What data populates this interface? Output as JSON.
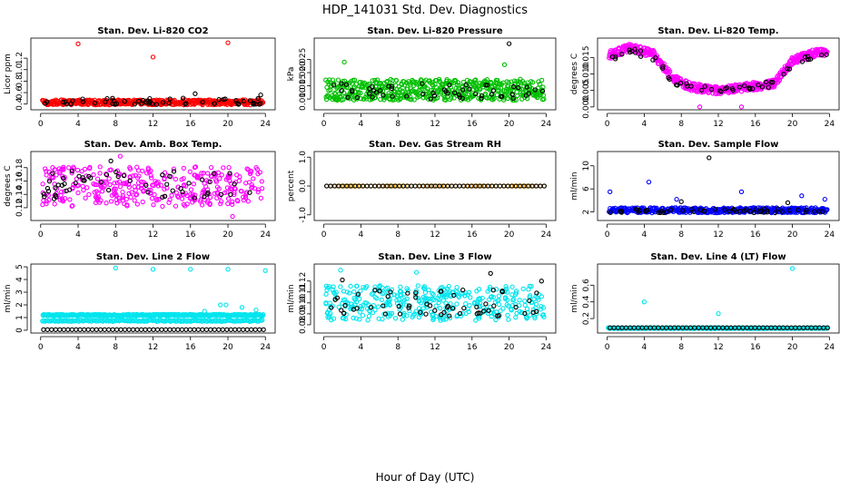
{
  "figure": {
    "title": "HDP_141031  Std. Dev. Diagnostics",
    "xlabel": "Hour of Day (UTC)"
  },
  "chart_data": [
    {
      "type": "scatter",
      "title": "Stan. Dev. Li-820 CO2",
      "ylabel": "Licor ppm",
      "xlim": [
        0,
        24
      ],
      "ylim": [
        0.35,
        1.5
      ],
      "xticks": [
        0,
        4,
        8,
        12,
        16,
        20,
        24
      ],
      "yticks": [
        0.4,
        0.6,
        0.8,
        1.0,
        1.2
      ],
      "ytick_labels": [
        "0.4",
        "0.6",
        "0.8",
        "1.0",
        "1.2"
      ],
      "series": [
        {
          "name": "dense",
          "color": "#ff0000",
          "pattern": "band",
          "base": 0.43,
          "amp": 0.045,
          "density": 18,
          "outliers": [
            [
              4.0,
              1.45
            ],
            [
              12.0,
              1.22
            ],
            [
              20.0,
              1.47
            ]
          ]
        },
        {
          "name": "sparse",
          "color": "#000000",
          "pattern": "scatter",
          "base": 0.45,
          "amp": 0.06,
          "n": 55,
          "outliers": [
            [
              16.5,
              0.58
            ],
            [
              23.5,
              0.56
            ]
          ]
        }
      ]
    },
    {
      "type": "scatter",
      "title": "Stan. Dev. Li-820 Pressure",
      "ylabel": "kPa",
      "xlim": [
        0,
        24
      ],
      "ylim": [
        0.007,
        0.032
      ],
      "xticks": [
        0,
        4,
        8,
        12,
        16,
        20,
        24
      ],
      "yticks": [
        0.01,
        0.015,
        0.02,
        0.025
      ],
      "ytick_labels": [
        "0.010",
        "0.015",
        "0.020",
        "0.025"
      ],
      "series": [
        {
          "name": "dense",
          "color": "#00c000",
          "pattern": "band",
          "base": 0.0135,
          "amp": 0.004,
          "density": 22,
          "outliers": [
            [
              2.2,
              0.024
            ],
            [
              19.5,
              0.023
            ]
          ]
        },
        {
          "name": "sparse",
          "color": "#000000",
          "pattern": "scatter",
          "base": 0.013,
          "amp": 0.003,
          "n": 55,
          "outliers": [
            [
              20.0,
              0.031
            ]
          ]
        }
      ]
    },
    {
      "type": "scatter",
      "title": "Stan. Dev. Li-820 Temp.",
      "ylabel": "degrees C",
      "xlim": [
        0,
        24
      ],
      "ylim": [
        0.0,
        0.02
      ],
      "xticks": [
        0,
        4,
        8,
        12,
        16,
        20,
        24
      ],
      "yticks": [
        0.0,
        0.005,
        0.01,
        0.015
      ],
      "ytick_labels": [
        "0.000",
        "0.005",
        "0.010",
        "0.015"
      ],
      "series": [
        {
          "name": "dense",
          "color": "#ff00ff",
          "pattern": "curve",
          "knots": [
            [
              0.5,
              0.016
            ],
            [
              2.5,
              0.018
            ],
            [
              5.0,
              0.016
            ],
            [
              7.0,
              0.009
            ],
            [
              9.0,
              0.006
            ],
            [
              12.0,
              0.005
            ],
            [
              15.0,
              0.006
            ],
            [
              18.0,
              0.007
            ],
            [
              20.0,
              0.014
            ],
            [
              22.0,
              0.016
            ],
            [
              24.0,
              0.017
            ]
          ],
          "amp": 0.0012,
          "density": 22,
          "outliers": [
            [
              10.0,
              0.0
            ],
            [
              14.5,
              0.0
            ]
          ]
        },
        {
          "name": "sparse",
          "color": "#000000",
          "pattern": "curve",
          "knots": [
            [
              0.5,
              0.015
            ],
            [
              2.5,
              0.017
            ],
            [
              5.0,
              0.015
            ],
            [
              7.0,
              0.008
            ],
            [
              9.0,
              0.006
            ],
            [
              12.0,
              0.005
            ],
            [
              15.0,
              0.006
            ],
            [
              18.0,
              0.007
            ],
            [
              20.0,
              0.013
            ],
            [
              22.0,
              0.015
            ],
            [
              24.0,
              0.016
            ]
          ],
          "amp": 0.0009,
          "n": 55,
          "outliers": []
        }
      ]
    },
    {
      "type": "scatter",
      "title": "Stan. Dev. Amb. Box Temp.",
      "ylabel": "degrees C",
      "xlim": [
        0,
        24
      ],
      "ylim": [
        0.105,
        0.2
      ],
      "xticks": [
        0,
        4,
        8,
        12,
        16,
        20,
        24
      ],
      "yticks": [
        0.12,
        0.14,
        0.16,
        0.18
      ],
      "ytick_labels": [
        "0.12",
        "0.14",
        "0.16",
        "0.18"
      ],
      "series": [
        {
          "name": "dense",
          "color": "#ff00ff",
          "pattern": "scatter",
          "base": 0.152,
          "amp": 0.03,
          "n": 360,
          "outliers": [
            [
              8.5,
              0.197
            ],
            [
              20.5,
              0.107
            ]
          ]
        },
        {
          "name": "sparse",
          "color": "#000000",
          "pattern": "scatter",
          "base": 0.155,
          "amp": 0.022,
          "n": 55,
          "outliers": [
            [
              7.5,
              0.19
            ]
          ]
        }
      ]
    },
    {
      "type": "scatter",
      "title": "Stan. Dev. Gas Stream RH",
      "ylabel": "percent",
      "xlim": [
        0,
        24
      ],
      "ylim": [
        -1.1,
        1.1
      ],
      "xticks": [
        0,
        4,
        8,
        12,
        16,
        20,
        24
      ],
      "yticks": [
        -1.0,
        0.0,
        1.0
      ],
      "ytick_labels": [
        "-1.0",
        "0.0",
        "1.0"
      ],
      "series": [
        {
          "name": "dense",
          "color": "#ffa500",
          "pattern": "constant",
          "value": 0.0,
          "n": 60,
          "outliers": []
        },
        {
          "name": "sparse",
          "color": "#000000",
          "pattern": "constant",
          "value": 0.0,
          "n": 55,
          "outliers": []
        }
      ]
    },
    {
      "type": "scatter",
      "title": "Stan. Dev. Sample Flow",
      "ylabel": "ml/min",
      "xlim": [
        0,
        24
      ],
      "ylim": [
        1.0,
        12.0
      ],
      "xticks": [
        0,
        4,
        8,
        12,
        16,
        20,
        24
      ],
      "yticks": [
        2,
        6,
        10
      ],
      "ytick_labels": [
        "2",
        "6",
        "10"
      ],
      "series": [
        {
          "name": "dense",
          "color": "#0000ff",
          "pattern": "band",
          "base": 2.3,
          "amp": 0.45,
          "density": 18,
          "outliers": [
            [
              0.3,
              5.5
            ],
            [
              4.5,
              7.2
            ],
            [
              7.5,
              4.2
            ],
            [
              14.5,
              5.5
            ],
            [
              21.0,
              4.8
            ],
            [
              23.5,
              4.2
            ]
          ]
        },
        {
          "name": "sparse",
          "color": "#000000",
          "pattern": "scatter",
          "base": 2.2,
          "amp": 0.35,
          "n": 55,
          "outliers": [
            [
              11.0,
              11.4
            ],
            [
              8.0,
              3.8
            ],
            [
              19.5,
              3.6
            ]
          ]
        }
      ]
    },
    {
      "type": "scatter",
      "title": "Stan. Dev. Line 2 Flow",
      "ylabel": "ml/min",
      "xlim": [
        0,
        24
      ],
      "ylim": [
        0.0,
        5.0
      ],
      "xticks": [
        0,
        4,
        8,
        12,
        16,
        20,
        24
      ],
      "yticks": [
        0,
        1,
        2,
        3,
        4,
        5
      ],
      "ytick_labels": [
        "0",
        "1",
        "2",
        "3",
        "4",
        "5"
      ],
      "series": [
        {
          "name": "dense",
          "color": "#00e5ee",
          "pattern": "twoband",
          "base": 1.2,
          "base2": 0.75,
          "amp": 0.06,
          "density": 22,
          "outliers": [
            [
              8.0,
              4.9
            ],
            [
              12.0,
              4.8
            ],
            [
              16.0,
              4.8
            ],
            [
              20.0,
              4.8
            ],
            [
              24.0,
              4.7
            ],
            [
              19.2,
              2.0
            ],
            [
              19.8,
              2.0
            ],
            [
              17.5,
              1.5
            ],
            [
              21.5,
              1.8
            ],
            [
              23.0,
              1.6
            ]
          ]
        },
        {
          "name": "sparse",
          "color": "#000000",
          "pattern": "constant",
          "value": 0.05,
          "n": 55,
          "outliers": []
        }
      ]
    },
    {
      "type": "scatter",
      "title": "Stan. Dev. Line 3 Flow",
      "ylabel": "ml/min",
      "xlim": [
        0,
        24
      ],
      "ylim": [
        0.075,
        0.133
      ],
      "xticks": [
        0,
        4,
        8,
        12,
        16,
        20,
        24
      ],
      "yticks": [
        0.08,
        0.09,
        0.1,
        0.11,
        0.12
      ],
      "ytick_labels": [
        "0.08",
        "0.09",
        "0.10",
        "0.11",
        "0.12"
      ],
      "series": [
        {
          "name": "dense",
          "color": "#00e5ee",
          "pattern": "scatter",
          "base": 0.1,
          "amp": 0.016,
          "n": 380,
          "outliers": [
            [
              1.8,
              0.13
            ],
            [
              10.0,
              0.128
            ]
          ]
        },
        {
          "name": "sparse",
          "color": "#000000",
          "pattern": "scatter",
          "base": 0.1,
          "amp": 0.012,
          "n": 60,
          "outliers": [
            [
              18.0,
              0.127
            ],
            [
              2.0,
              0.121
            ],
            [
              23.5,
              0.12
            ]
          ]
        }
      ]
    },
    {
      "type": "scatter",
      "title": "Stan. Dev. Line 4 (LT) Flow",
      "ylabel": "ml/min",
      "xlim": [
        0,
        24
      ],
      "ylim": [
        0.06,
        0.82
      ],
      "xticks": [
        0,
        4,
        8,
        12,
        16,
        20,
        24
      ],
      "yticks": [
        0.2,
        0.4,
        0.6
      ],
      "ytick_labels": [
        "0.2",
        "0.4",
        "0.6"
      ],
      "series": [
        {
          "name": "dense",
          "color": "#00e5ee",
          "pattern": "band",
          "base": 0.085,
          "amp": 0.005,
          "density": 18,
          "outliers": [
            [
              4.0,
              0.4
            ],
            [
              12.0,
              0.26
            ],
            [
              20.0,
              0.8
            ],
            [
              0.1,
              0.09
            ]
          ]
        },
        {
          "name": "sparse",
          "color": "#000000",
          "pattern": "constant",
          "value": 0.09,
          "n": 55,
          "outliers": []
        }
      ]
    }
  ]
}
